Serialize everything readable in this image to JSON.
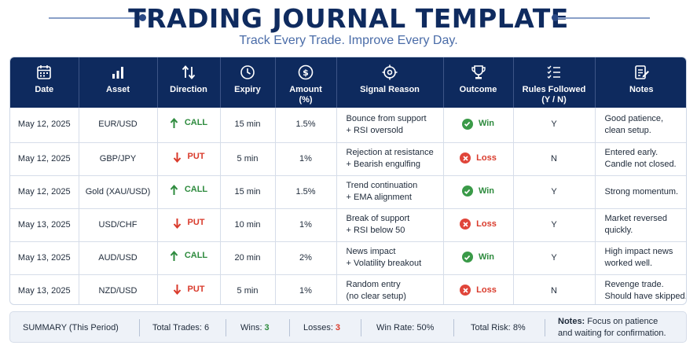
{
  "header": {
    "title": "TRADING JOURNAL TEMPLATE",
    "subtitle": "Track Every Trade. Improve Every Day."
  },
  "table": {
    "columns": [
      {
        "key": "date",
        "label": "Date",
        "icon": "calendar-icon"
      },
      {
        "key": "asset",
        "label": "Asset",
        "icon": "bar-chart-icon"
      },
      {
        "key": "direction",
        "label": "Direction",
        "icon": "up-down-arrows-icon"
      },
      {
        "key": "expiry",
        "label": "Expiry",
        "icon": "clock-icon"
      },
      {
        "key": "amount",
        "label": "Amount\n(%)",
        "icon": "dollar-icon"
      },
      {
        "key": "signal",
        "label": "Signal Reason",
        "icon": "target-icon"
      },
      {
        "key": "outcome",
        "label": "Outcome",
        "icon": "trophy-icon"
      },
      {
        "key": "rules",
        "label": "Rules Followed\n(Y / N)",
        "icon": "checklist-icon"
      },
      {
        "key": "notes",
        "label": "Notes",
        "icon": "notepad-icon"
      }
    ],
    "rows": [
      {
        "date": "May 12, 2025",
        "asset": "EUR/USD",
        "direction": "CALL",
        "expiry": "15 min",
        "amount": "1.5%",
        "signal": "Bounce from support\n+ RSI oversold",
        "outcome": "Win",
        "rules": "Y",
        "notes": "Good patience,\nclean setup."
      },
      {
        "date": "May 12, 2025",
        "asset": "GBP/JPY",
        "direction": "PUT",
        "expiry": "5 min",
        "amount": "1%",
        "signal": "Rejection at resistance\n+ Bearish engulfing",
        "outcome": "Loss",
        "rules": "N",
        "notes": "Entered early.\nCandle not closed."
      },
      {
        "date": "May 12, 2025",
        "asset": "Gold (XAU/USD)",
        "direction": "CALL",
        "expiry": "15 min",
        "amount": "1.5%",
        "signal": "Trend continuation\n+ EMA alignment",
        "outcome": "Win",
        "rules": "Y",
        "notes": "Strong momentum."
      },
      {
        "date": "May 13, 2025",
        "asset": "USD/CHF",
        "direction": "PUT",
        "expiry": "10 min",
        "amount": "1%",
        "signal": "Break of support\n+ RSI below 50",
        "outcome": "Loss",
        "rules": "Y",
        "notes": "Market reversed\nquickly."
      },
      {
        "date": "May 13, 2025",
        "asset": "AUD/USD",
        "direction": "CALL",
        "expiry": "20 min",
        "amount": "2%",
        "signal": "News impact\n+ Volatility breakout",
        "outcome": "Win",
        "rules": "Y",
        "notes": "High impact news\nworked well."
      },
      {
        "date": "May 13, 2025",
        "asset": "NZD/USD",
        "direction": "PUT",
        "expiry": "5 min",
        "amount": "1%",
        "signal": "Random entry\n(no clear setup)",
        "outcome": "Loss",
        "rules": "N",
        "notes": "Revenge trade.\nShould have skipped."
      }
    ]
  },
  "summary": {
    "label": "SUMMARY (This Period)",
    "total_trades_label": "Total Trades:",
    "total_trades": "6",
    "wins_label": "Wins:",
    "wins": "3",
    "losses_label": "Losses:",
    "losses": "3",
    "win_rate_label": "Win Rate:",
    "win_rate": "50%",
    "total_risk_label": "Total Risk:",
    "total_risk": "8%",
    "notes_label": "Notes:",
    "notes_text": "Focus on patience\nand waiting for confirmation."
  },
  "colors": {
    "header_bg": "#0e2a5e",
    "call_green": "#2e8b3e",
    "put_red": "#d93a2b",
    "accent_blue": "#4a6ca8"
  }
}
